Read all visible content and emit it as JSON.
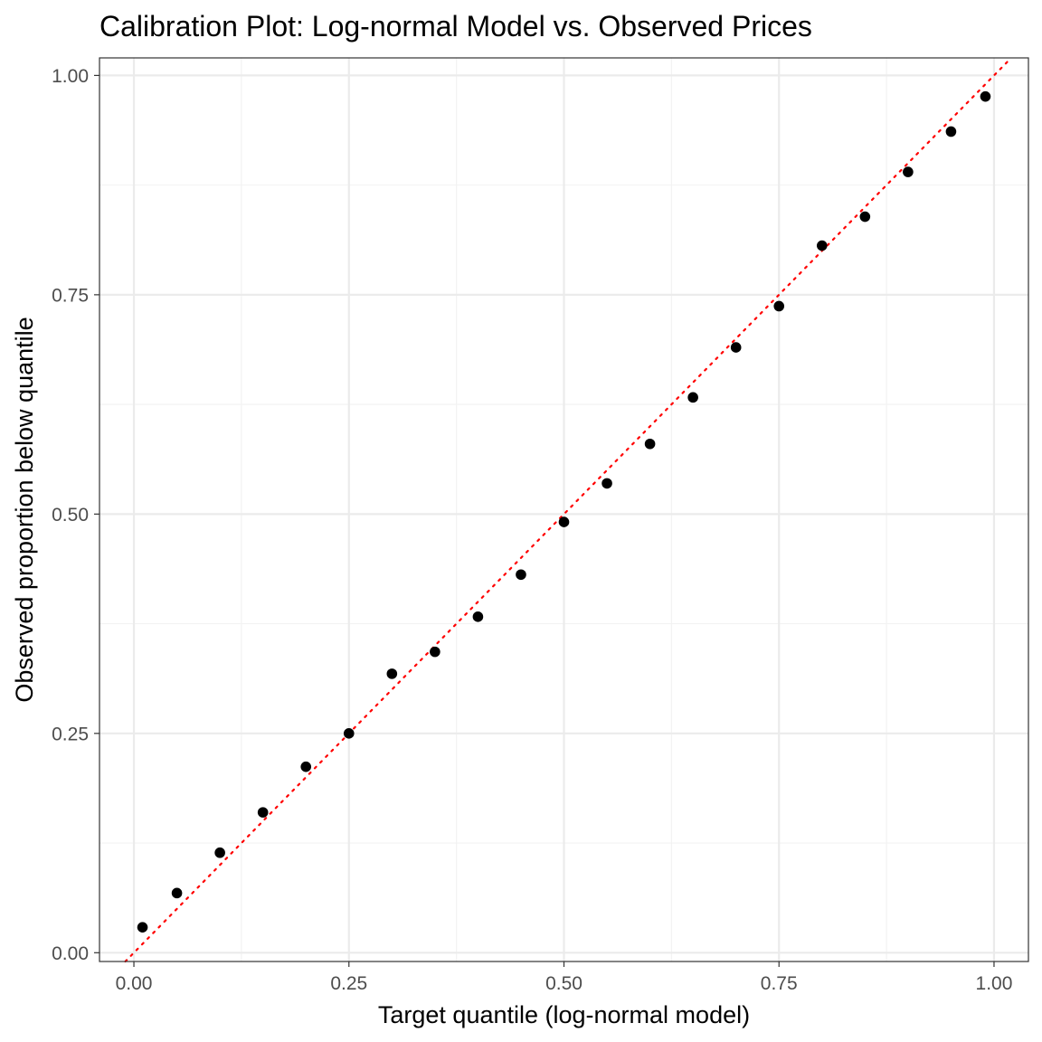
{
  "chart_data": {
    "type": "scatter",
    "title": "Calibration Plot: Log-normal Model vs. Observed Prices",
    "xlabel": "Target quantile (log-normal model)",
    "ylabel": "Observed proportion below quantile",
    "xlim": [
      -0.04,
      1.04
    ],
    "ylim": [
      -0.01,
      1.02
    ],
    "x_ticks": [
      0,
      0.25,
      0.5,
      0.75,
      1
    ],
    "x_tick_labels": [
      "0.00",
      "0.25",
      "0.50",
      "0.75",
      "1.00"
    ],
    "y_ticks": [
      0,
      0.25,
      0.5,
      0.75,
      1
    ],
    "y_tick_labels": [
      "0.00",
      "0.25",
      "0.50",
      "0.75",
      "1.00"
    ],
    "grid": true,
    "legend": "none",
    "series": [
      {
        "x": [
          0.01,
          0.05,
          0.1,
          0.15,
          0.2,
          0.25,
          0.3,
          0.35,
          0.4,
          0.45,
          0.5,
          0.55,
          0.6,
          0.65,
          0.7,
          0.75,
          0.8,
          0.85,
          0.9,
          0.95,
          0.99
        ],
        "y": [
          0.029,
          0.068,
          0.114,
          0.16,
          0.212,
          0.25,
          0.318,
          0.343,
          0.383,
          0.431,
          0.491,
          0.535,
          0.58,
          0.633,
          0.69,
          0.737,
          0.806,
          0.839,
          0.89,
          0.936,
          0.976
        ],
        "color": "#000000"
      }
    ],
    "reference_line": {
      "intercept": 0,
      "slope": 1,
      "style": "dotted",
      "color": "#ff0000"
    },
    "colors": {
      "panel_border": "#333333",
      "grid_major": "#ebebeb",
      "grid_minor": "#f2f2f2",
      "tick_text": "#4d4d4d"
    }
  }
}
